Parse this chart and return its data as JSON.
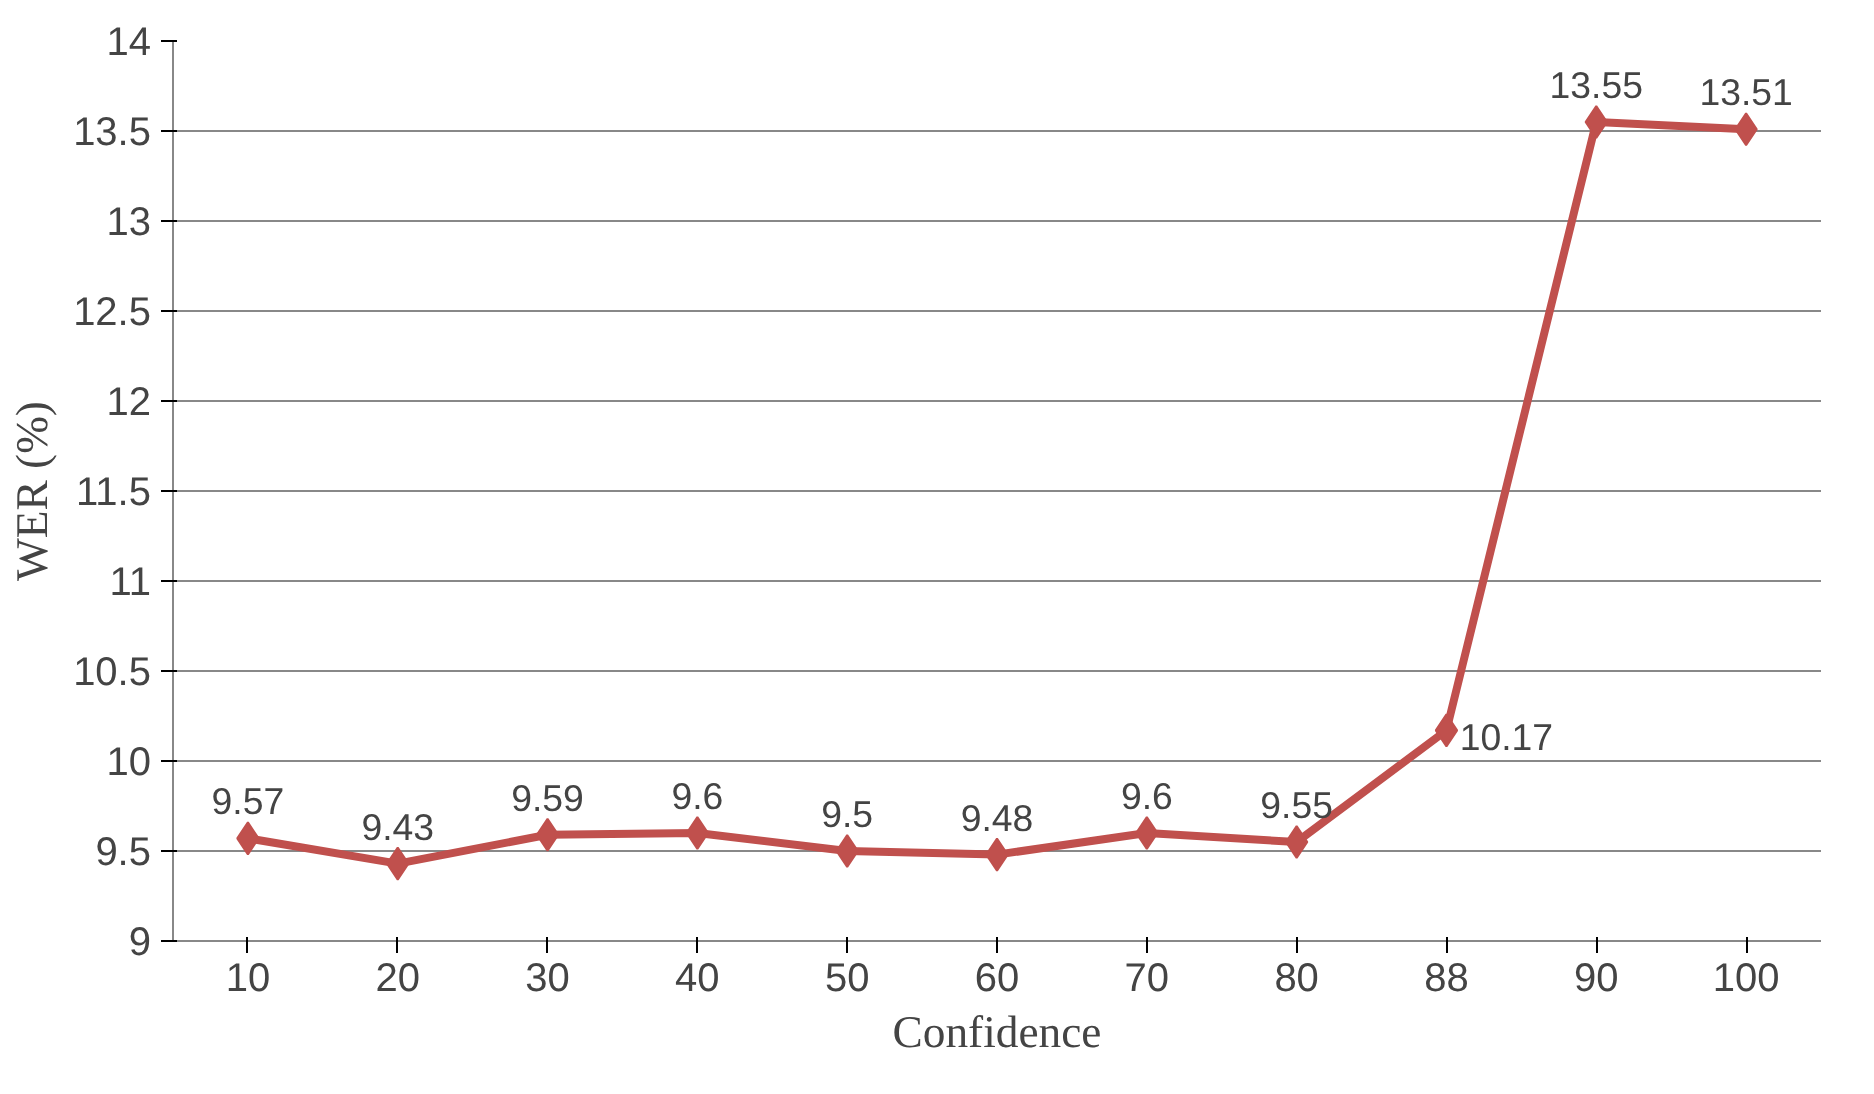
{
  "chart_data": {
    "type": "line",
    "xlabel": "Confidence",
    "ylabel": "WER (%)",
    "categories": [
      "10",
      "20",
      "30",
      "40",
      "50",
      "60",
      "70",
      "80",
      "88",
      "90",
      "100"
    ],
    "series": [
      {
        "color": "#c0504d",
        "values": [
          9.57,
          9.43,
          9.59,
          9.6,
          9.5,
          9.48,
          9.6,
          9.55,
          10.17,
          13.55,
          13.51
        ]
      }
    ],
    "ylim": [
      9,
      14
    ],
    "yticks": [
      9,
      9.5,
      10,
      10.5,
      11,
      11.5,
      12,
      12.5,
      13,
      13.5,
      14
    ],
    "grid": "y",
    "marker": "diamond",
    "line_style": "solid",
    "data_labels": true
  }
}
